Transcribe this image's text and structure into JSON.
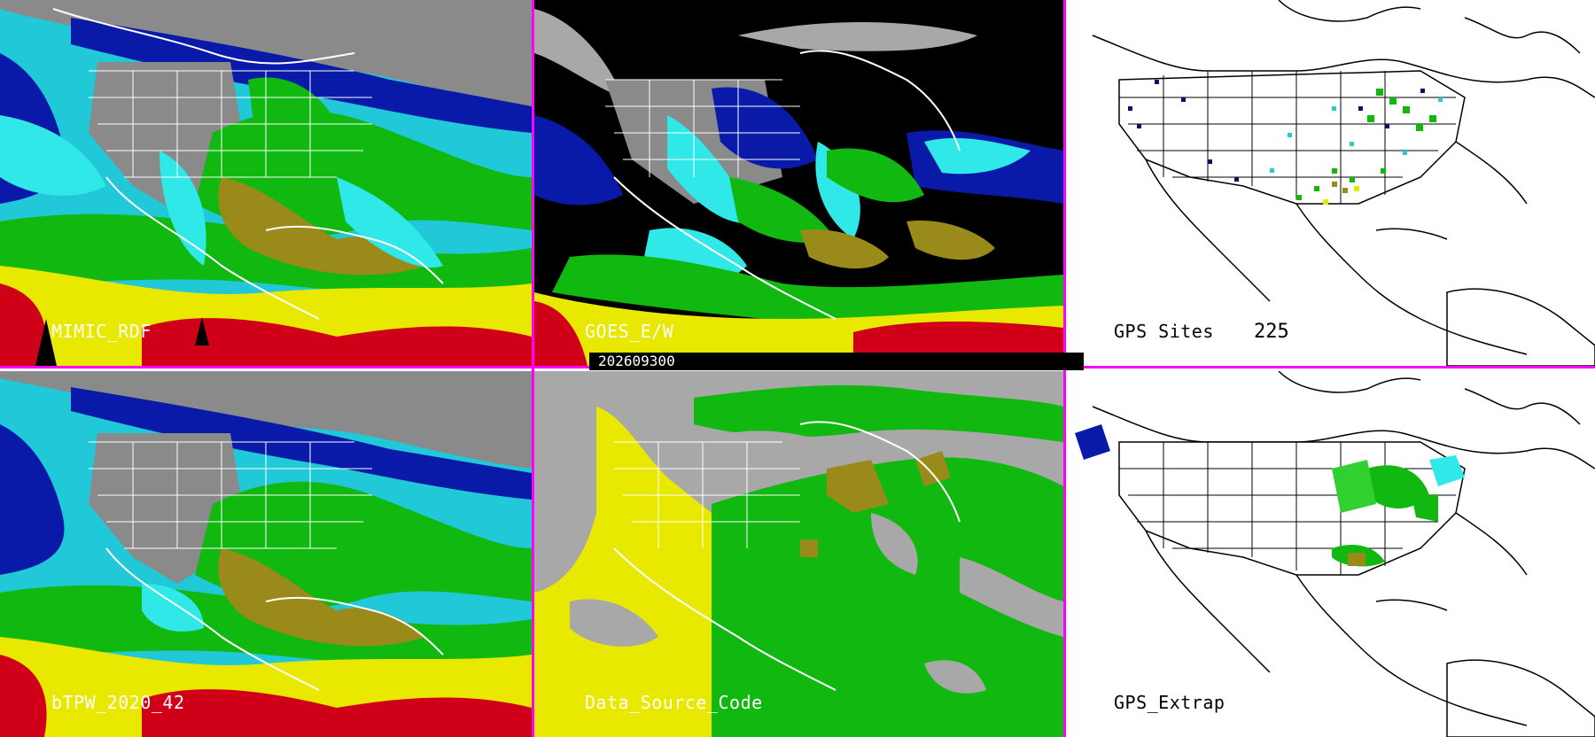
{
  "panels": {
    "mimic": {
      "label": "MIMIC_RDF"
    },
    "goes": {
      "label": "GOES_E/W"
    },
    "gps_sites": {
      "label": "GPS Sites",
      "count": "225"
    },
    "btpw": {
      "label": "bTPW_2020_42"
    },
    "data_source": {
      "label": "Data_Source_Code"
    },
    "gps_extrap": {
      "label": "GPS_Extrap"
    }
  },
  "timestamp": "202609300",
  "colors": {
    "divider": "#ff00ff",
    "red": "#d00018",
    "yellow": "#e8e800",
    "green": "#10b810",
    "lightgreen": "#30d030",
    "cyan": "#30e8e8",
    "blue": "#0a1aa8",
    "navy": "#061070",
    "gray": "#a8a8a8",
    "olive": "#9a8a1a",
    "black": "#000000",
    "white": "#ffffff"
  }
}
